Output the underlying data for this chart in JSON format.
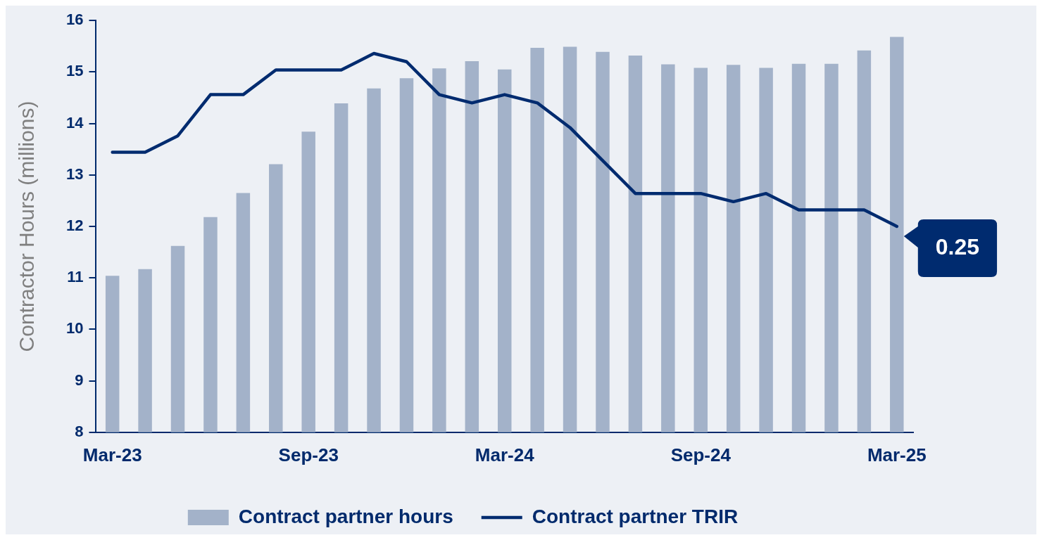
{
  "chart_data": {
    "type": "bar",
    "ylabel": "Contractor Hours (millions)",
    "categories": [
      "Mar-23",
      null,
      null,
      null,
      null,
      null,
      "Sep-23",
      null,
      null,
      null,
      null,
      null,
      "Mar-24",
      null,
      null,
      null,
      null,
      null,
      "Sep-24",
      null,
      null,
      null,
      null,
      null,
      "Mar-25"
    ],
    "series": [
      {
        "name": "Contract partner hours",
        "color": "#a3b2c9",
        "values": [
          11.04,
          11.17,
          11.62,
          12.18,
          12.65,
          13.21,
          13.84,
          14.39,
          14.68,
          14.88,
          15.07,
          15.21,
          15.05,
          15.47,
          15.49,
          15.39,
          15.32,
          15.15,
          15.08,
          15.14,
          15.08,
          15.16,
          15.16,
          15.42,
          15.68
        ]
      },
      {
        "name": "Contract partner TRIR",
        "type": "line",
        "axis": "y2",
        "color": "#002b6f",
        "values": [
          0.34,
          0.34,
          0.36,
          0.41,
          0.41,
          0.44,
          0.44,
          0.44,
          0.46,
          0.45,
          0.41,
          0.4,
          0.41,
          0.4,
          0.37,
          0.33,
          0.29,
          0.29,
          0.29,
          0.28,
          0.29,
          0.27,
          0.27,
          0.27,
          0.25
        ],
        "value_labels": [
          null,
          null,
          null,
          null,
          null,
          null,
          null,
          null,
          null,
          null,
          null,
          null,
          null,
          null,
          null,
          null,
          null,
          null,
          null,
          null,
          null,
          null,
          null,
          null,
          "0.25"
        ]
      }
    ],
    "ylim": [
      8,
      16
    ],
    "yticks": [
      8,
      9,
      10,
      11,
      12,
      13,
      14,
      15,
      16
    ],
    "y2lim": [
      0,
      0.5
    ],
    "grid": false,
    "legend": "bottom",
    "marker": "none",
    "line_style": "solid"
  }
}
